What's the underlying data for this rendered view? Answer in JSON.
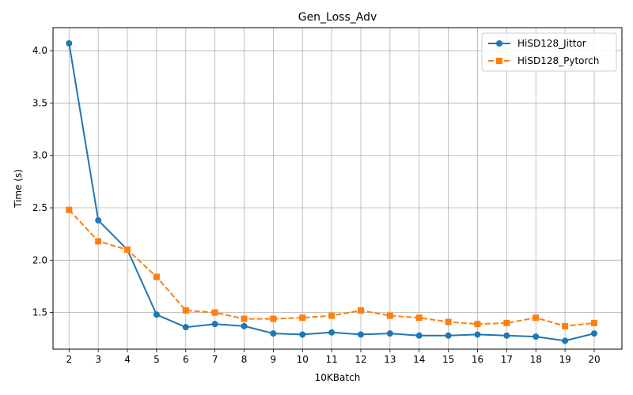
{
  "chart_data": {
    "type": "line",
    "title": "Gen_Loss_Adv",
    "xlabel": "10KBatch",
    "ylabel": "Time (s)",
    "x": [
      2,
      3,
      4,
      5,
      6,
      7,
      8,
      9,
      10,
      11,
      12,
      13,
      14,
      15,
      16,
      17,
      18,
      19,
      20
    ],
    "xticks": [
      "2",
      "3",
      "4",
      "5",
      "6",
      "7",
      "8",
      "9",
      "10",
      "11",
      "12",
      "13",
      "14",
      "15",
      "16",
      "17",
      "18",
      "19",
      "20"
    ],
    "yticks": [
      "1.5",
      "2.0",
      "2.5",
      "3.0",
      "3.5",
      "4.0"
    ],
    "ytick_values": [
      1.5,
      2.0,
      2.5,
      3.0,
      3.5,
      4.0
    ],
    "ylim": [
      1.15,
      4.22
    ],
    "xlim": [
      1.45,
      20.95
    ],
    "grid": true,
    "legend_position": "top-right",
    "series": [
      {
        "name": "HiSD128_Jittor",
        "color": "#1f77b4",
        "marker": "circle",
        "linestyle": "solid",
        "values": [
          4.07,
          2.38,
          2.1,
          1.48,
          1.36,
          1.39,
          1.37,
          1.3,
          1.29,
          1.31,
          1.29,
          1.3,
          1.28,
          1.28,
          1.29,
          1.28,
          1.27,
          1.23,
          1.3
        ]
      },
      {
        "name": "HiSD128_Pytorch",
        "color": "#ff7f0e",
        "marker": "square",
        "linestyle": "dashed",
        "values": [
          2.48,
          2.18,
          2.1,
          1.84,
          1.52,
          1.5,
          1.44,
          1.44,
          1.45,
          1.47,
          1.52,
          1.47,
          1.45,
          1.41,
          1.39,
          1.4,
          1.45,
          1.37,
          1.4
        ]
      }
    ]
  }
}
